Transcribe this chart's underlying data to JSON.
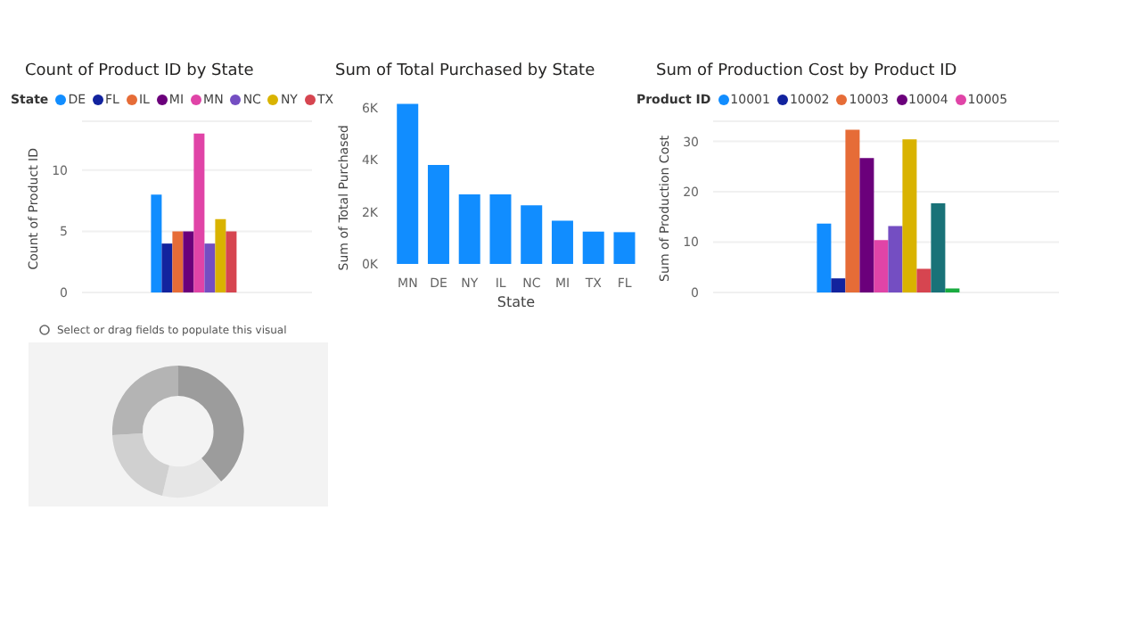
{
  "chart_data": [
    {
      "type": "bar",
      "title": "Count of Product ID by State",
      "ylabel": "Count of Product ID",
      "legend_title": "State",
      "legend": "top",
      "grid": "y",
      "tick_labels": "y",
      "categories": [
        null
      ],
      "ylim": [
        0,
        14
      ],
      "yticks": [
        0,
        5,
        10
      ],
      "series": [
        {
          "name": "DE",
          "color": "#118dff",
          "values": [
            8
          ]
        },
        {
          "name": "FL",
          "color": "#12239e",
          "values": [
            4
          ]
        },
        {
          "name": "IL",
          "color": "#e66c37",
          "values": [
            5
          ]
        },
        {
          "name": "MI",
          "color": "#6b007b",
          "values": [
            5
          ]
        },
        {
          "name": "MN",
          "color": "#e044a7",
          "values": [
            13
          ]
        },
        {
          "name": "NC",
          "color": "#744ec2",
          "values": [
            4
          ]
        },
        {
          "name": "NY",
          "color": "#d9b300",
          "values": [
            6
          ]
        },
        {
          "name": "TX",
          "color": "#d64550",
          "values": [
            5
          ]
        }
      ]
    },
    {
      "type": "bar",
      "title": "Sum of Total Purchased by State",
      "xlabel": "State",
      "ylabel": "Sum of Total Purchased",
      "categories": [
        "MN",
        "DE",
        "NY",
        "IL",
        "NC",
        "MI",
        "TX",
        "FL"
      ],
      "values": [
        6150,
        3800,
        2670,
        2670,
        2250,
        1660,
        1240,
        1220
      ],
      "color": "#118dff",
      "ylim": [
        0,
        6300
      ],
      "yticks": [
        {
          "value": 0,
          "label": "0K"
        },
        {
          "value": 2000,
          "label": "2K"
        },
        {
          "value": 4000,
          "label": "4K"
        },
        {
          "value": 6000,
          "label": "6K"
        }
      ]
    },
    {
      "type": "bar",
      "title": "Sum of Production Cost by Product ID",
      "ylabel": "Sum of Production Cost",
      "legend_title": "Product ID",
      "legend": "top",
      "grid": "y",
      "tick_labels": "y",
      "categories": [
        null
      ],
      "ylim": [
        0,
        34
      ],
      "yticks": [
        0,
        10,
        20,
        30
      ],
      "series": [
        {
          "name": "10001",
          "color": "#118dff",
          "values": [
            13.7
          ]
        },
        {
          "name": "10002",
          "color": "#12239e",
          "values": [
            2.8
          ]
        },
        {
          "name": "10003",
          "color": "#e66c37",
          "values": [
            32.3
          ]
        },
        {
          "name": "10004",
          "color": "#6b007b",
          "values": [
            26.7
          ]
        },
        {
          "name": "10005",
          "color": "#e044a7",
          "values": [
            10.4
          ]
        },
        {
          "color": "#744ec2",
          "values": [
            13.2
          ]
        },
        {
          "color": "#d9b300",
          "values": [
            30.4
          ]
        },
        {
          "color": "#d64550",
          "values": [
            4.7
          ]
        },
        {
          "color": "#197278",
          "values": [
            17.7
          ]
        },
        {
          "color": "#1aab40",
          "values": [
            0.8
          ]
        }
      ]
    },
    {
      "type": "other",
      "annotations": [
        "Select or drag fields to populate this visual"
      ]
    }
  ]
}
